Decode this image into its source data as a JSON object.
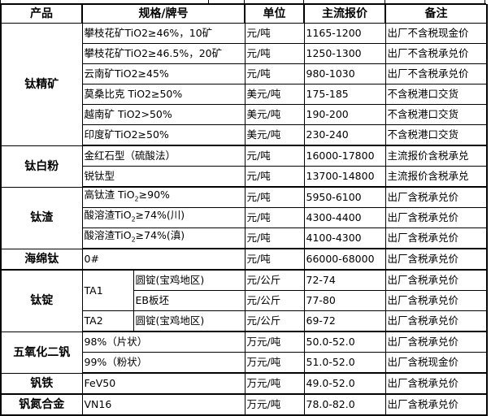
{
  "headers": [
    "产品",
    "规格/牌号",
    "单位",
    "主流报价",
    "备注"
  ],
  "groups": [
    {
      "product": "钛精矿",
      "rows": [
        {
          "spec": "攀枝花矿TiO2≥46%，10矿",
          "unit": "元/吨",
          "price": "1165-1200",
          "note": "出厂不含税现金价"
        },
        {
          "spec": "攀枝花矿TiO2≥46.5%，20矿",
          "unit": "元/吨",
          "price": "1250-1300",
          "note": "出厂不含税承兑价"
        },
        {
          "spec": "云南矿TiO2≥45%",
          "unit": "元/吨",
          "price": "980-1030",
          "note": "出厂不含税承兑价"
        },
        {
          "spec": "莫桑比克 TiO2≥50%",
          "unit": "美元/吨",
          "price": "175-185",
          "note": "不含税港口交货"
        },
        {
          "spec": "越南矿 TiO2>50%",
          "unit": "美元/吨",
          "price": "190-200",
          "note": "不含税港口交货"
        },
        {
          "spec": "印度矿TiO2≥50%",
          "unit": "美元/吨",
          "price": "230-240",
          "note": "不含税港口交货"
        }
      ]
    },
    {
      "product": "钛白粉",
      "rows": [
        {
          "spec": "金红石型（硫酸法）",
          "unit": "元/吨",
          "price": "16000-17800",
          "note": "主流报价含税承兑"
        },
        {
          "spec": "锐钛型",
          "unit": "元/吨",
          "price": "13700-14800",
          "note": "主流报价含税承兑"
        }
      ]
    },
    {
      "product": "钛渣",
      "rows": [
        {
          "spec_pre": "高钛渣 TiO",
          "spec_sub": "2",
          "spec_post": "≥90%",
          "unit": "元/吨",
          "price": "5950-6100",
          "note": "出厂含税承兑价"
        },
        {
          "spec_pre": "酸溶渣TiO",
          "spec_sub": "2",
          "spec_post": "≥74%(川)",
          "unit": "元/吨",
          "price": "4300-4400",
          "note": "出厂含税承兑价"
        },
        {
          "spec_pre": "酸溶渣TiO",
          "spec_sub": "2",
          "spec_post": "≥74%(滇)",
          "unit": "元/吨",
          "price": "4100-4300",
          "note": "出厂含税承兑价"
        }
      ]
    },
    {
      "product": "海绵钛",
      "rows": [
        {
          "spec": "0#",
          "unit": "元/吨",
          "price": "66000-68000",
          "note": "出厂含税承兑价"
        }
      ]
    },
    {
      "product": "钛锭",
      "rows": [
        {
          "grade": "TA1",
          "spec": "圆锭(宝鸡地区)",
          "unit": "元/公斤",
          "price": "72-74",
          "note": "出厂含税承兑价"
        },
        {
          "spec": "EB板坯",
          "unit": "元/公斤",
          "price": "77-80",
          "note": "出厂含税承兑价"
        },
        {
          "grade": "TA2",
          "spec": "圆锭(宝鸡地区)",
          "unit": "元/公斤",
          "price": "69-72",
          "note": "出厂含税承兑价"
        }
      ]
    },
    {
      "product": "五氧化二钒",
      "rows": [
        {
          "spec": "98%（片状）",
          "unit": "万元/吨",
          "price": "50.0-52.0",
          "note": "出厂含税承兑价"
        },
        {
          "spec": "99%（粉状）",
          "unit": "万元/吨",
          "price": "51.0-52.0",
          "note": "出厂含税现金价"
        }
      ]
    },
    {
      "product": "钒铁",
      "rows": [
        {
          "spec": "FeV50",
          "unit": "万元/吨",
          "price": "49.0-52.0",
          "note": "出厂含税承兑价"
        }
      ]
    },
    {
      "product": "钒氮合金",
      "rows": [
        {
          "spec": "VN16",
          "unit": "万元/吨",
          "price": "78.0-82.0",
          "note": "出厂含税承兑价"
        }
      ]
    }
  ]
}
